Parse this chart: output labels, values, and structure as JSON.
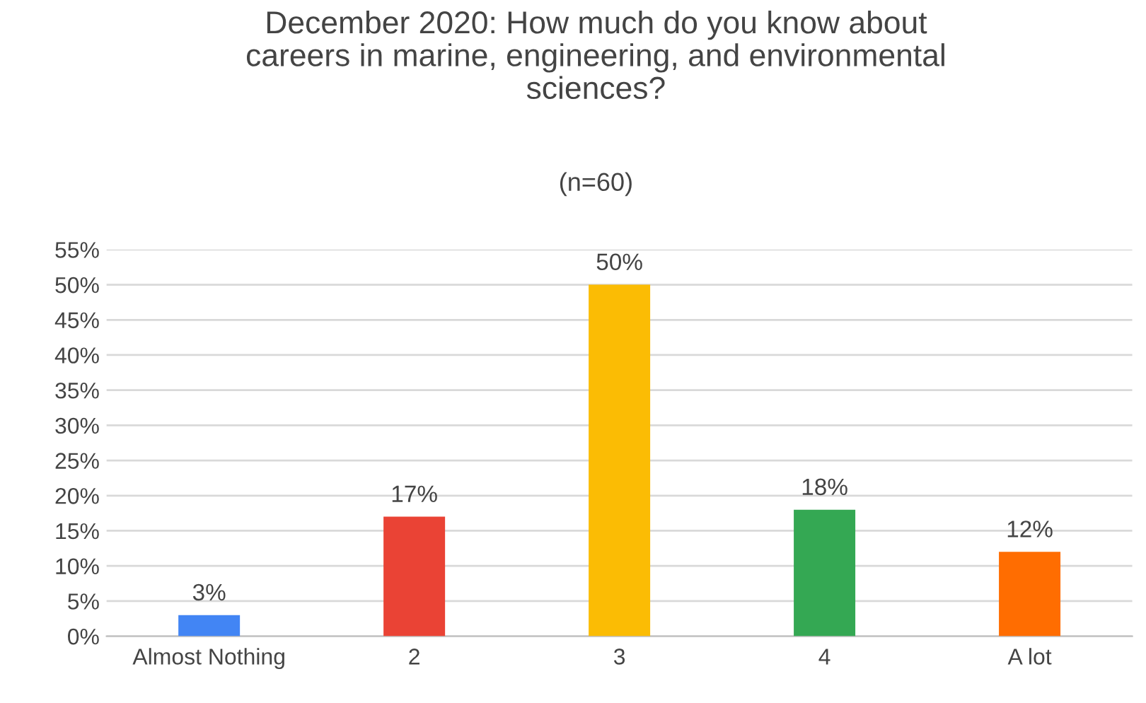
{
  "chart_data": {
    "type": "bar",
    "title": "December 2020: How much do you know about\ncareers in marine, engineering, and environmental\nsciences?",
    "subtitle": "(n=60)",
    "categories": [
      "Almost Nothing",
      "2",
      "3",
      "4",
      "A lot"
    ],
    "values": [
      3,
      17,
      50,
      18,
      12
    ],
    "colors": [
      "#4285f4",
      "#ea4335",
      "#fbbc04",
      "#34a853",
      "#ff6d01"
    ],
    "value_labels": [
      "3%",
      "17%",
      "50%",
      "18%",
      "12%"
    ],
    "ylim": [
      0,
      55
    ],
    "yticks": [
      {
        "value": 0,
        "label": "0%"
      },
      {
        "value": 5,
        "label": "5%"
      },
      {
        "value": 10,
        "label": "10%"
      },
      {
        "value": 15,
        "label": "15%"
      },
      {
        "value": 20,
        "label": "20%"
      },
      {
        "value": 25,
        "label": "25%"
      },
      {
        "value": 30,
        "label": "30%"
      },
      {
        "value": 35,
        "label": "35%"
      },
      {
        "value": 40,
        "label": "40%"
      },
      {
        "value": 45,
        "label": "45%"
      },
      {
        "value": 50,
        "label": "50%"
      },
      {
        "value": 55,
        "label": "55%"
      }
    ],
    "grid": "y",
    "legend": false
  }
}
